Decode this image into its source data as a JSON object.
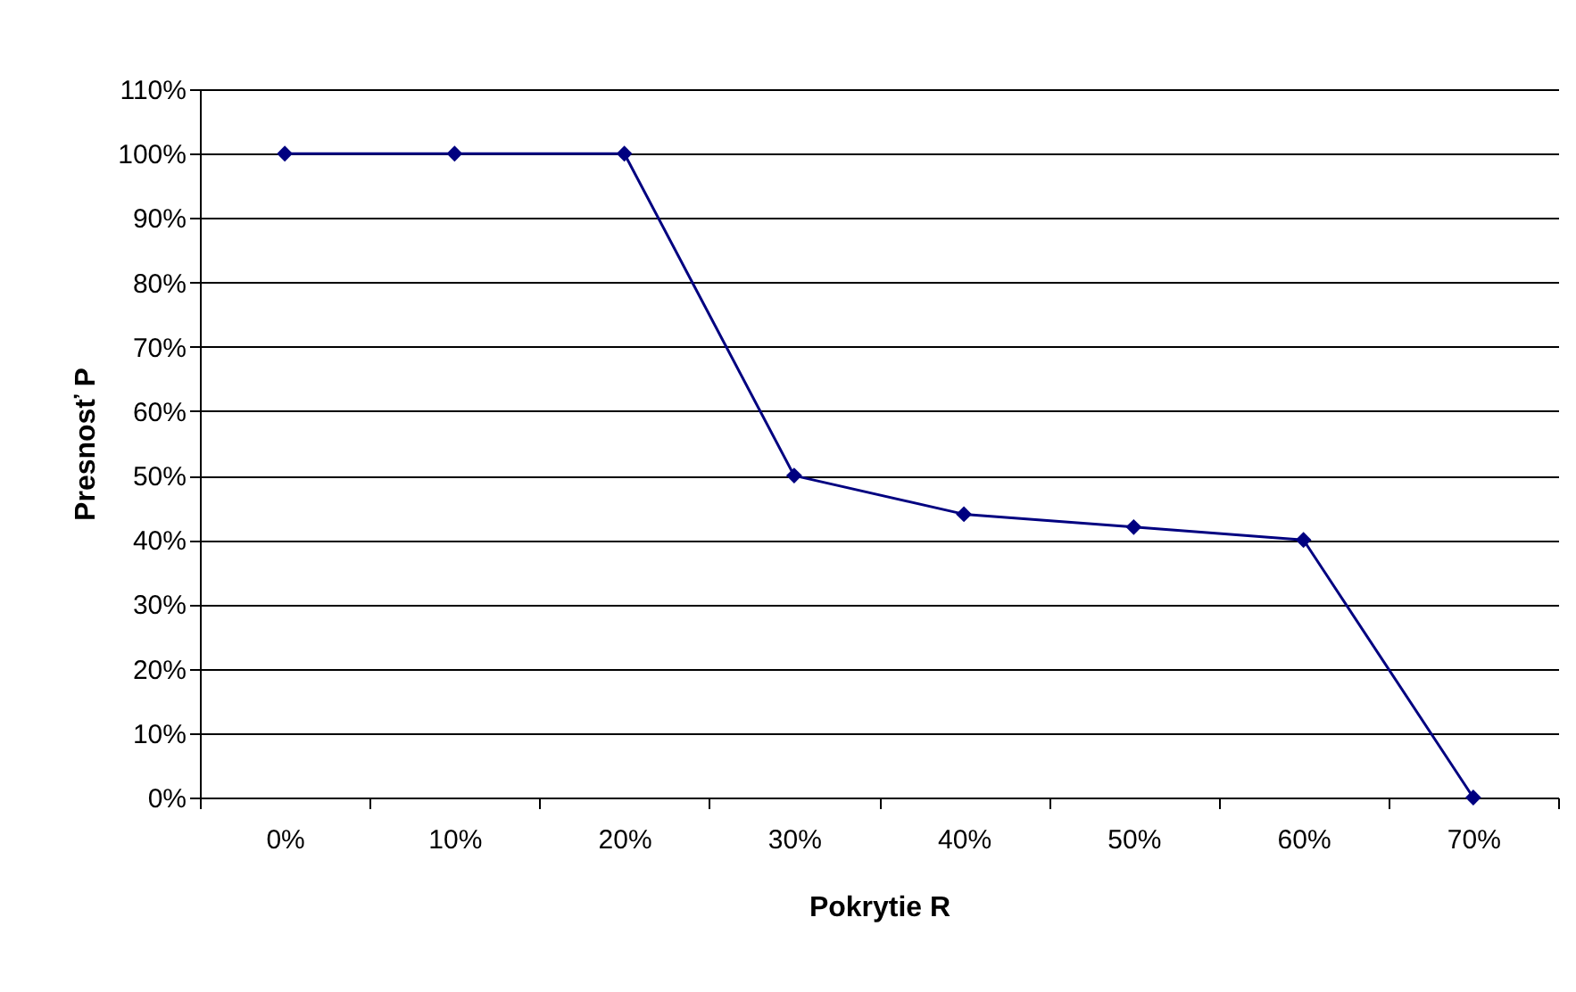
{
  "chart_data": {
    "type": "line",
    "xlabel": "Pokrytie R",
    "ylabel": "Presnosť P",
    "categories": [
      "0%",
      "10%",
      "20%",
      "30%",
      "40%",
      "50%",
      "60%",
      "70%"
    ],
    "series": [
      {
        "color": "#000080",
        "values": [
          100,
          100,
          100,
          50,
          44,
          42,
          40,
          0
        ]
      }
    ],
    "ylim": [
      0,
      110
    ],
    "yticks": [
      {
        "value": 0,
        "label": "0%"
      },
      {
        "value": 10,
        "label": "10%"
      },
      {
        "value": 20,
        "label": "20%"
      },
      {
        "value": 30,
        "label": "30%"
      },
      {
        "value": 40,
        "label": "40%"
      },
      {
        "value": 50,
        "label": "50%"
      },
      {
        "value": 60,
        "label": "60%"
      },
      {
        "value": 70,
        "label": "70%"
      },
      {
        "value": 80,
        "label": "80%"
      },
      {
        "value": 90,
        "label": "90%"
      },
      {
        "value": 100,
        "label": "100%"
      },
      {
        "value": 110,
        "label": "110%"
      }
    ],
    "grid": "y",
    "legend": false,
    "marker": "diamond",
    "line_style": "solid"
  }
}
